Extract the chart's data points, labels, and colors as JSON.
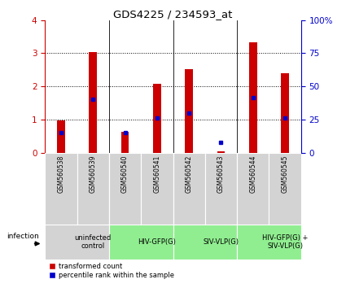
{
  "title": "GDS4225 / 234593_at",
  "samples": [
    "GSM560538",
    "GSM560539",
    "GSM560540",
    "GSM560541",
    "GSM560542",
    "GSM560543",
    "GSM560544",
    "GSM560545"
  ],
  "red_values": [
    0.97,
    3.03,
    0.62,
    2.07,
    2.52,
    0.05,
    3.33,
    2.4
  ],
  "blue_percentile": [
    15,
    40,
    15,
    26,
    30,
    7.5,
    41.25,
    26.25
  ],
  "groups": [
    {
      "label": "uninfected\ncontrol",
      "start": 0,
      "end": 2,
      "color": "#d3d3d3"
    },
    {
      "label": "HIV-GFP(G)",
      "start": 2,
      "end": 4,
      "color": "#90EE90"
    },
    {
      "label": "SIV-VLP(G)",
      "start": 4,
      "end": 6,
      "color": "#90EE90"
    },
    {
      "label": "HIV-GFP(G) +\nSIV-VLP(G)",
      "start": 6,
      "end": 8,
      "color": "#90EE90"
    }
  ],
  "ylim": [
    0,
    4
  ],
  "y2lim": [
    0,
    100
  ],
  "yticks": [
    0,
    1,
    2,
    3,
    4
  ],
  "y2ticks": [
    0,
    25,
    50,
    75,
    100
  ],
  "left_axis_color": "#cc0000",
  "right_axis_color": "#0000cc",
  "bar_color_red": "#cc0000",
  "bar_color_blue": "#0000cc",
  "background_color": "#ffffff",
  "sample_bg_color": "#d3d3d3",
  "group_bg_colors": [
    "#d3d3d3",
    "#90EE90",
    "#90EE90",
    "#90EE90"
  ],
  "bar_width": 0.25
}
